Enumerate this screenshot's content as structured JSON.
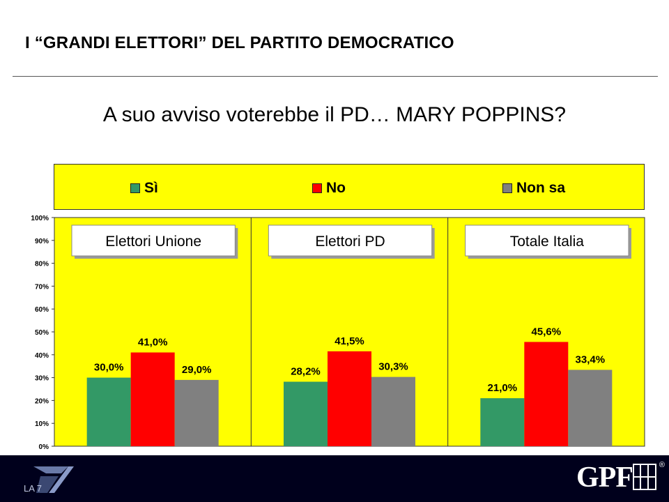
{
  "header": {
    "title": "I “GRANDI ELETTORI” DEL PARTITO DEMOCRATICO",
    "question": "A suo avviso voterebbe il PD… MARY POPPINS?"
  },
  "colors": {
    "background_plot": "#ffff00",
    "si": "#339966",
    "no": "#ff0000",
    "non_sa": "#808080",
    "footer": "#00001c"
  },
  "legend": {
    "items": [
      {
        "label": "Sì",
        "color": "#339966"
      },
      {
        "label": "No",
        "color": "#ff0000"
      },
      {
        "label": "Non sa",
        "color": "#808080"
      }
    ]
  },
  "chart_data": {
    "type": "bar",
    "categories": [
      "Elettori Unione",
      "Elettori PD",
      "Totale Italia"
    ],
    "series": [
      {
        "name": "Sì",
        "values": [
          30.0,
          28.2,
          21.0
        ],
        "labels": [
          "30,0%",
          "28,2%",
          "21,0%"
        ]
      },
      {
        "name": "No",
        "values": [
          41.0,
          41.5,
          45.6
        ],
        "labels": [
          "41,0%",
          "41,5%",
          "45,6%"
        ]
      },
      {
        "name": "Non sa",
        "values": [
          29.0,
          30.3,
          33.4
        ],
        "labels": [
          "29,0%",
          "30,3%",
          "33,4%"
        ]
      }
    ],
    "yticks": [
      "0%",
      "10%",
      "20%",
      "30%",
      "40%",
      "50%",
      "60%",
      "70%",
      "80%",
      "90%",
      "100%"
    ],
    "ylim": [
      0,
      100
    ],
    "grid": false,
    "legend_position": "top"
  },
  "footer": {
    "left_logo": "LA 7",
    "right_logo": "GPF",
    "registered": "®"
  }
}
